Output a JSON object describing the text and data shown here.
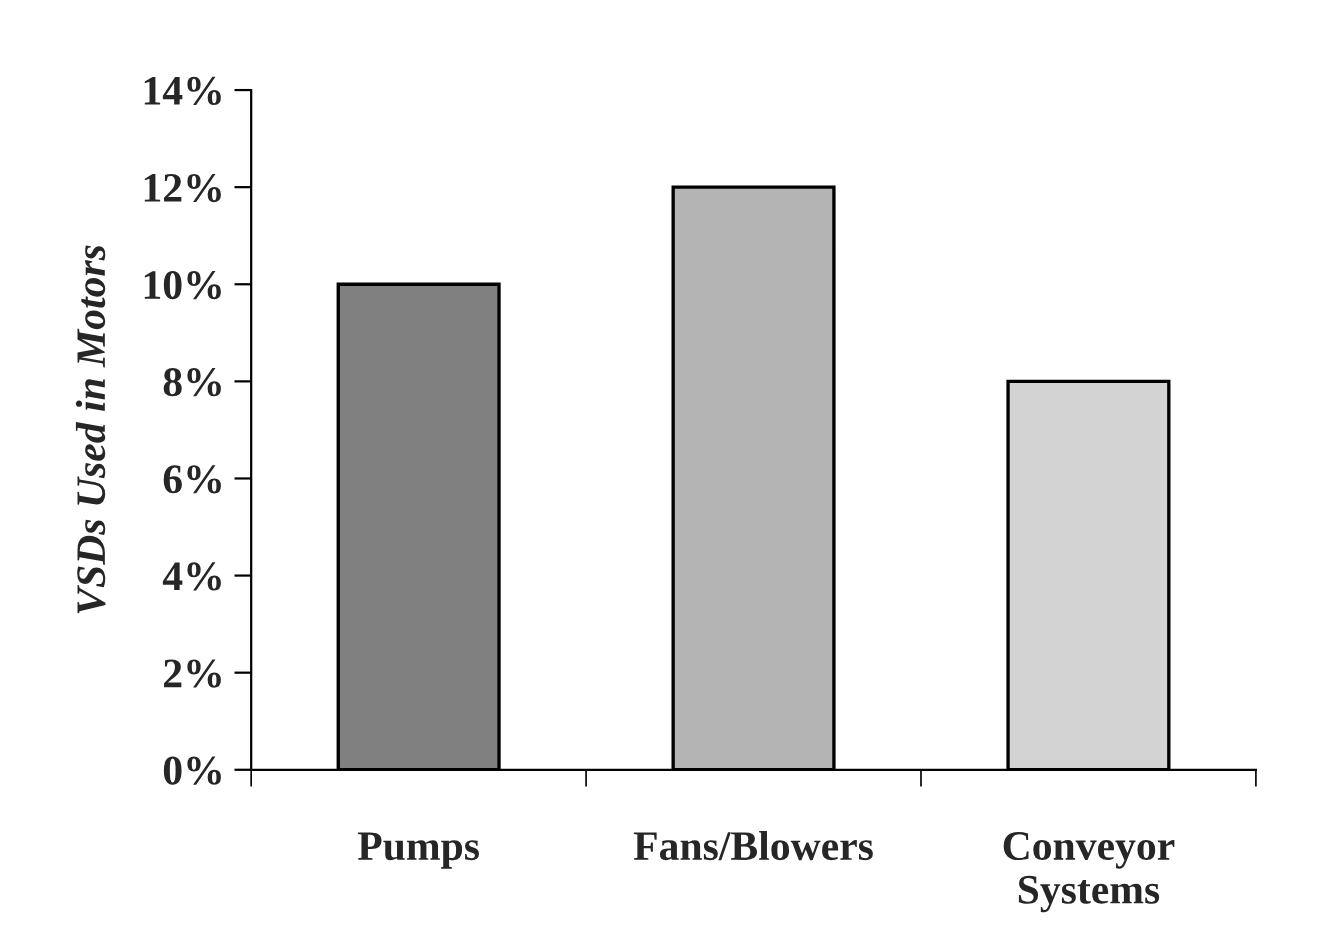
{
  "chart_data": {
    "type": "bar",
    "ylabel": "VSDs Used in Motors",
    "categories": [
      "Pumps",
      "Fans/Blowers",
      "Conveyor\nSystems"
    ],
    "values": [
      10,
      12,
      8
    ],
    "colors": [
      "#808080",
      "#b4b4b4",
      "#d3d3d3"
    ],
    "ylim": [
      0,
      14
    ],
    "yticks": [
      {
        "value": 0,
        "label": "0%"
      },
      {
        "value": 2,
        "label": "2%"
      },
      {
        "value": 4,
        "label": "4%"
      },
      {
        "value": 6,
        "label": "6%"
      },
      {
        "value": 8,
        "label": "8%"
      },
      {
        "value": 10,
        "label": "10%"
      },
      {
        "value": 12,
        "label": "12%"
      },
      {
        "value": 14,
        "label": "14%"
      }
    ],
    "grid": false,
    "legend": false
  }
}
